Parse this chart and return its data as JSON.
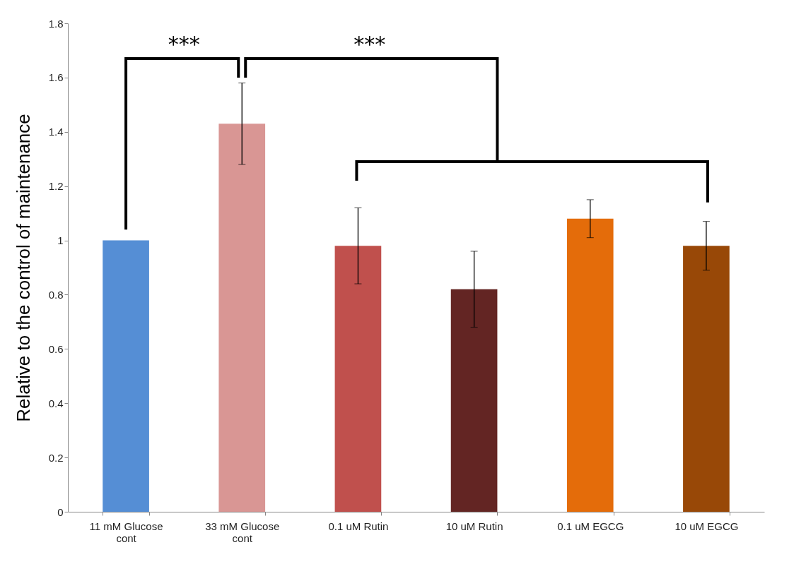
{
  "chart_data": {
    "type": "bar",
    "ylabel": "Relative to the control of maintenance",
    "categories": [
      "11 mM Glucose cont",
      "33 mM Glucose cont",
      "0.1 uM Rutin",
      "10 uM Rutin",
      "0.1 uM EGCG",
      "10 uM EGCG"
    ],
    "values": [
      1.0,
      1.43,
      0.98,
      0.82,
      1.08,
      0.98
    ],
    "errors": [
      null,
      0.15,
      0.14,
      0.14,
      0.07,
      0.09
    ],
    "colors": [
      "#558ed5",
      "#d99694",
      "#c0504d",
      "#632523",
      "#e46c0a",
      "#984807"
    ],
    "ylim": [
      0,
      1.8
    ],
    "yticks": [
      0,
      0.2,
      0.4,
      0.6,
      0.8,
      1,
      1.2,
      1.4,
      1.6,
      1.8
    ],
    "grid": false,
    "annotations": [
      "***",
      "***"
    ]
  }
}
